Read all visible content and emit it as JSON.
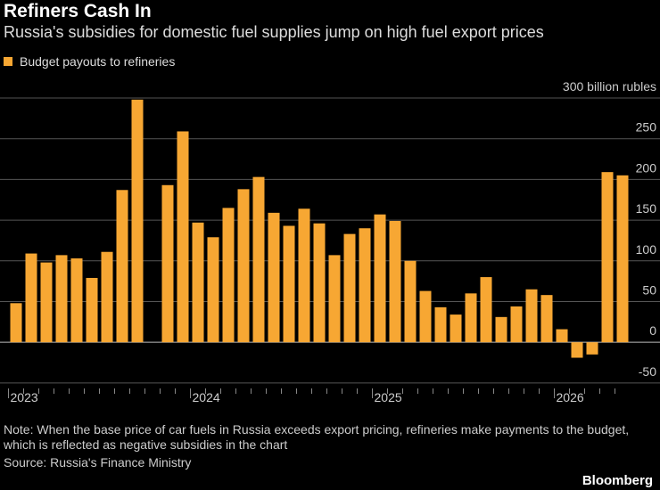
{
  "chart_data": {
    "type": "bar",
    "title": "Refiners Cash In",
    "subtitle": "Russia's subsidies for domestic fuel supplies jump on high fuel export prices",
    "categories": [
      "2023",
      null,
      null,
      null,
      null,
      null,
      null,
      null,
      null,
      null,
      null,
      null,
      "2024",
      null,
      null,
      null,
      null,
      null,
      null,
      null,
      null,
      null,
      null,
      null,
      "2025",
      null,
      null,
      null,
      null,
      null,
      null,
      null,
      null,
      null,
      null,
      null,
      "2026",
      null,
      null,
      null,
      null
    ],
    "series": [
      {
        "name": "Budget payouts to refineries",
        "color": "#f7a733",
        "values": [
          48,
          109,
          98,
          107,
          103,
          79,
          111,
          187,
          298,
          null,
          193,
          259,
          147,
          129,
          165,
          188,
          203,
          159,
          143,
          164,
          146,
          107,
          133,
          140,
          157,
          149,
          100,
          63,
          43,
          34,
          60,
          80,
          31,
          44,
          65,
          58,
          16,
          -19,
          -15,
          209,
          205
        ]
      }
    ],
    "ylim": [
      -60,
      300
    ],
    "yticks": [
      -50,
      0,
      50,
      100,
      150,
      200,
      250,
      {
        "value": 300,
        "label": "300 billion rubles"
      }
    ],
    "grid": true,
    "note": "Note: When the base price of car fuels in Russia exceeds export pricing, refineries make payments to the budget, which is reflected as negative subsidies in the chart",
    "source": "Source: Russia's Finance Ministry",
    "brand": "Bloomberg"
  }
}
